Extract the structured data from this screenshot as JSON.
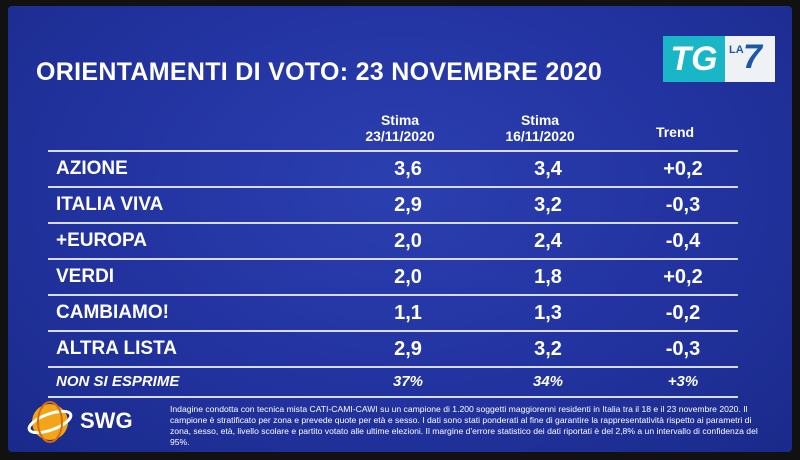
{
  "title": "ORIENTAMENTI DI VOTO: 23 NOVEMBRE 2020",
  "broadcaster_logo": {
    "tg": "TG",
    "la": "LA",
    "seven": "7"
  },
  "columns": {
    "c1_line1": "Stima",
    "c1_line2": "23/11/2020",
    "c2_line1": "Stima",
    "c2_line2": "16/11/2020",
    "c3": "Trend"
  },
  "chart_data": {
    "type": "table",
    "title": "ORIENTAMENTI DI VOTO: 23 NOVEMBRE 2020",
    "columns": [
      "Stima 23/11/2020",
      "Stima 16/11/2020",
      "Trend"
    ],
    "rows": [
      {
        "name": "AZIONE",
        "stima_23_11": "3,6",
        "stima_16_11": "3,4",
        "trend": "+0,2"
      },
      {
        "name": "ITALIA VIVA",
        "stima_23_11": "2,9",
        "stima_16_11": "3,2",
        "trend": "-0,3"
      },
      {
        "name": "+EUROPA",
        "stima_23_11": "2,0",
        "stima_16_11": "2,4",
        "trend": "-0,4"
      },
      {
        "name": "VERDI",
        "stima_23_11": "2,0",
        "stima_16_11": "1,8",
        "trend": "+0,2"
      },
      {
        "name": "CAMBIAMO!",
        "stima_23_11": "1,1",
        "stima_16_11": "1,3",
        "trend": "-0,2"
      },
      {
        "name": "ALTRA LISTA",
        "stima_23_11": "2,9",
        "stima_16_11": "3,2",
        "trend": "-0,3"
      },
      {
        "name": "NON SI ESPRIME",
        "stima_23_11": "37%",
        "stima_16_11": "34%",
        "trend": "+3%"
      }
    ]
  },
  "source_logo": {
    "text": "SWG"
  },
  "footnote": "Indagine condotta con tecnica mista CATI-CAMI-CAWI su un campione di 1.200 soggetti maggiorenni residenti in Italia tra il 18 e il 23 novembre 2020. Il campione è stratificato per zona e prevede quote per età e sesso. I dati sono stati ponderati al fine di garantire la rappresentatività rispetto ai parametri di zona, sesso, età, livello scolare e partito votato alle ultime elezioni. Il margine d'errore statistico dei dati riportati è del 2,8% a un intervallo di confidenza del 95%.",
  "colors": {
    "background": "#2233a0",
    "logo_teal": "#19b6c8",
    "rule": "#d6dbef"
  }
}
